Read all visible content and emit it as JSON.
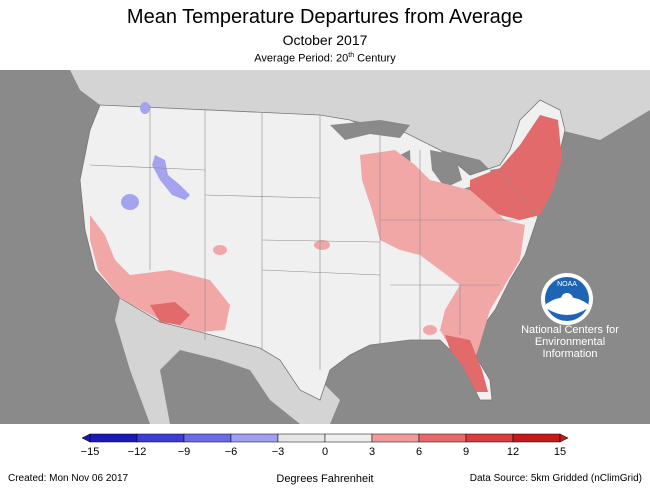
{
  "header": {
    "title": "Mean Temperature Departures from Average",
    "subtitle": "October 2017",
    "period_prefix": "Average Period: 20",
    "period_sup": "th",
    "period_suffix": " Century"
  },
  "agency": {
    "logo_text": "NOAA",
    "line1": "National Centers for",
    "line2": "Environmental",
    "line3": "Information"
  },
  "legend": {
    "units": "Degrees Fahrenheit",
    "ticks": [
      "−15",
      "−12",
      "−9",
      "−6",
      "−3",
      "0",
      "3",
      "6",
      "9",
      "12",
      "15"
    ],
    "colors": [
      "#1a1ab8",
      "#3d3dd4",
      "#6b6be6",
      "#a0a0f2",
      "#e6e6e6",
      "#eeeeee",
      "#f09a9a",
      "#e66a6a",
      "#d93c3c",
      "#c41a1a"
    ]
  },
  "footer": {
    "created": "Created: Mon Nov 06 2017",
    "source": "Data Source: 5km Gridded (nClimGrid)"
  },
  "colors": {
    "background_land": "#f0f0f0",
    "foreign_land": "#d4d4d4",
    "water": "#8a8a8a",
    "warm_light": "#f2a7a7",
    "warm_mid": "#e36a6a",
    "cool": "#a3a3f0"
  }
}
